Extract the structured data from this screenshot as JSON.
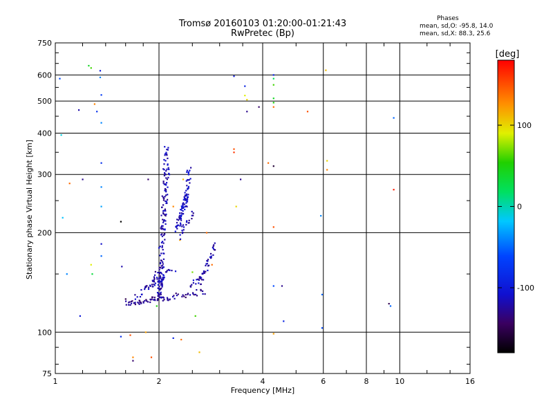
{
  "chart_data": {
    "type": "scatter",
    "title": "Tromsø 20160103 01:20:00-01:21:43",
    "subtitle": "RwPretec (Bp)",
    "stats": {
      "heading": "Phases",
      "line0": "mean, sd,O: -95.8, 14.0",
      "lineX": "mean, sd,X:  88.3, 25.6"
    },
    "xlabel": "Frequency [MHz]",
    "ylabel": "Stationary phase Virtual Height [km]",
    "x_scale": "log",
    "y_scale": "log",
    "xlim": [
      1,
      16
    ],
    "ylim": [
      75,
      750
    ],
    "xticks": [
      1,
      2,
      4,
      6,
      8,
      10,
      16
    ],
    "xtick_labels": [
      "1",
      "2",
      "4",
      "6",
      "8",
      "10",
      "16"
    ],
    "xgrid": [
      2,
      4,
      6,
      8,
      10
    ],
    "yticks": [
      75,
      100,
      200,
      300,
      400,
      500,
      600,
      750
    ],
    "ytick_labels": [
      "75",
      "100",
      "200",
      "300",
      "400",
      "500",
      "600",
      "750"
    ],
    "ygrid": [
      100,
      200,
      300,
      400,
      500,
      600
    ],
    "colorbar": {
      "label": "[deg]",
      "range": [
        -180,
        180
      ],
      "ticks": [
        100,
        0,
        -100
      ],
      "tick_labels": [
        "100",
        "0",
        "-100"
      ]
    },
    "points": [
      [
        1.03,
        585,
        -60
      ],
      [
        1.04,
        395,
        -10
      ],
      [
        1.05,
        222,
        -20
      ],
      [
        1.08,
        150,
        -40
      ],
      [
        1.1,
        282,
        140
      ],
      [
        1.17,
        470,
        -120
      ],
      [
        1.18,
        112,
        -100
      ],
      [
        1.2,
        290,
        -130
      ],
      [
        1.25,
        640,
        40
      ],
      [
        1.27,
        630,
        60
      ],
      [
        1.27,
        160,
        90
      ],
      [
        1.28,
        150,
        30
      ],
      [
        1.3,
        490,
        130
      ],
      [
        1.32,
        465,
        -80
      ],
      [
        1.35,
        618,
        -100
      ],
      [
        1.35,
        590,
        -40
      ],
      [
        1.36,
        522,
        -70
      ],
      [
        1.36,
        430,
        -40
      ],
      [
        1.36,
        325,
        -80
      ],
      [
        1.36,
        275,
        -40
      ],
      [
        1.36,
        240,
        -30
      ],
      [
        1.36,
        185,
        -110
      ],
      [
        1.36,
        170,
        -50
      ],
      [
        1.55,
        216,
        -180
      ],
      [
        1.56,
        158,
        -120
      ],
      [
        1.6,
        126,
        -150
      ],
      [
        1.55,
        97,
        -80
      ],
      [
        1.65,
        98,
        150
      ],
      [
        1.68,
        84,
        130
      ],
      [
        1.68,
        82,
        -140
      ],
      [
        1.83,
        100,
        120
      ],
      [
        1.86,
        290,
        -140
      ],
      [
        1.9,
        84,
        150
      ],
      [
        1.97,
        120,
        50
      ],
      [
        2.2,
        96,
        -90
      ],
      [
        2.32,
        95,
        140
      ],
      [
        2.5,
        152,
        70
      ],
      [
        2.55,
        112,
        60
      ],
      [
        2.62,
        87,
        110
      ],
      [
        2.75,
        200,
        140
      ],
      [
        2.85,
        160,
        140
      ],
      [
        2.0,
        180,
        -110
      ],
      [
        2.08,
        205,
        -100
      ],
      [
        2.2,
        240,
        130
      ],
      [
        2.3,
        190,
        120
      ],
      [
        2.35,
        290,
        110
      ],
      [
        3.3,
        595,
        -100
      ],
      [
        3.3,
        358,
        150
      ],
      [
        3.3,
        350,
        160
      ],
      [
        3.35,
        240,
        100
      ],
      [
        3.45,
        290,
        -130
      ],
      [
        3.55,
        520,
        90
      ],
      [
        3.6,
        505,
        100
      ],
      [
        3.6,
        465,
        -130
      ],
      [
        3.55,
        555,
        -90
      ],
      [
        3.9,
        480,
        -140
      ],
      [
        4.15,
        325,
        140
      ],
      [
        4.3,
        318,
        -160
      ],
      [
        4.3,
        600,
        -90
      ],
      [
        4.3,
        585,
        20
      ],
      [
        4.3,
        560,
        60
      ],
      [
        4.3,
        510,
        40
      ],
      [
        4.3,
        495,
        50
      ],
      [
        4.3,
        480,
        140
      ],
      [
        4.3,
        208,
        150
      ],
      [
        4.3,
        138,
        -60
      ],
      [
        4.3,
        99,
        120
      ],
      [
        4.55,
        138,
        -130
      ],
      [
        4.6,
        108,
        -90
      ],
      [
        5.4,
        465,
        150
      ],
      [
        5.9,
        225,
        -40
      ],
      [
        5.95,
        130,
        -50
      ],
      [
        5.95,
        103,
        -60
      ],
      [
        6.1,
        620,
        110
      ],
      [
        6.15,
        330,
        100
      ],
      [
        6.15,
        310,
        130
      ],
      [
        9.3,
        122,
        -150
      ],
      [
        9.4,
        120,
        -50
      ],
      [
        9.6,
        445,
        -50
      ],
      [
        9.6,
        270,
        170
      ]
    ],
    "traces": [
      {
        "from": [
          1.6,
          122
        ],
        "to": [
          2.1,
          127
        ],
        "n": 50,
        "colorValue": -130
      },
      {
        "from": [
          2.1,
          127
        ],
        "to": [
          2.7,
          133
        ],
        "n": 30,
        "colorValue": -130
      },
      {
        "from": [
          2.0,
          127
        ],
        "to": [
          2.03,
          150
        ],
        "n": 40,
        "colorValue": -120
      },
      {
        "from": [
          2.03,
          150
        ],
        "to": [
          2.1,
          365
        ],
        "n": 90,
        "colorValue": -120
      },
      {
        "from": [
          2.05,
          200
        ],
        "to": [
          2.13,
          320
        ],
        "n": 25,
        "colorValue": -120
      },
      {
        "from": [
          2.25,
          205
        ],
        "to": [
          2.42,
          260
        ],
        "n": 60,
        "colorValue": -110
      },
      {
        "from": [
          2.38,
          240
        ],
        "to": [
          2.45,
          315
        ],
        "n": 30,
        "colorValue": -110
      },
      {
        "from": [
          2.3,
          195
        ],
        "to": [
          2.5,
          230
        ],
        "n": 20,
        "colorValue": -120
      },
      {
        "from": [
          2.62,
          140
        ],
        "to": [
          2.92,
          183
        ],
        "n": 35,
        "colorValue": -120
      },
      {
        "from": [
          2.45,
          138
        ],
        "to": [
          2.7,
          150
        ],
        "n": 15,
        "colorValue": -120
      },
      {
        "from": [
          1.7,
          128
        ],
        "to": [
          2.0,
          145
        ],
        "n": 20,
        "colorValue": -120
      },
      {
        "from": [
          1.85,
          135
        ],
        "to": [
          2.05,
          160
        ],
        "n": 20,
        "colorValue": -120
      },
      {
        "from": [
          1.95,
          140
        ],
        "to": [
          2.2,
          155
        ],
        "n": 20,
        "colorValue": -115
      }
    ]
  }
}
